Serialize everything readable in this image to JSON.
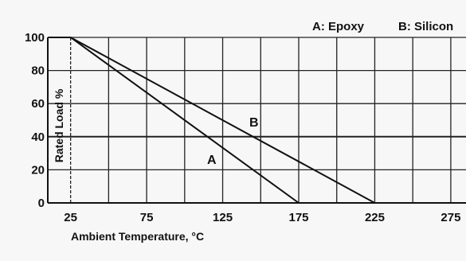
{
  "chart_data": {
    "type": "line",
    "title": "",
    "xlabel": "Ambient Temperature, °C",
    "ylabel": "Rated Load %",
    "xlim": [
      10,
      285
    ],
    "ylim": [
      0,
      100
    ],
    "x_ticks": [
      "25",
      "75",
      "125",
      "175",
      "225",
      "275"
    ],
    "y_ticks": [
      "0",
      "20",
      "40",
      "60",
      "80",
      "100"
    ],
    "grid": true,
    "legend_position": "top-right",
    "legend": [
      "A: Epoxy",
      "B: Silicon"
    ],
    "series": [
      {
        "name": "A",
        "x": [
          10,
          25,
          175
        ],
        "y": [
          100,
          100,
          0
        ]
      },
      {
        "name": "B",
        "x": [
          10,
          25,
          225
        ],
        "y": [
          100,
          100,
          0
        ]
      }
    ]
  }
}
